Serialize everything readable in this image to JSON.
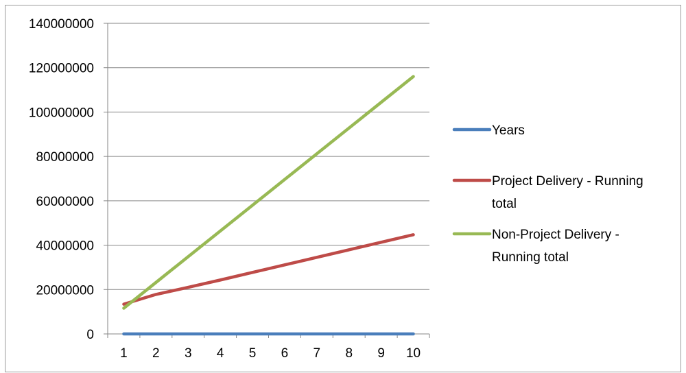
{
  "chart_data": {
    "type": "line",
    "title": "",
    "xlabel": "",
    "ylabel": "",
    "categories": [
      "1",
      "2",
      "3",
      "4",
      "5",
      "6",
      "7",
      "8",
      "9",
      "10"
    ],
    "ylim": [
      0,
      140000000
    ],
    "y_ticks": [
      "0",
      "20000000",
      "40000000",
      "60000000",
      "80000000",
      "100000000",
      "120000000",
      "140000000"
    ],
    "grid": "horizontal",
    "legend_position": "right",
    "series": [
      {
        "name": "Years",
        "color": "#4a7ebb",
        "values": [
          1,
          2,
          3,
          4,
          5,
          6,
          7,
          8,
          9,
          10
        ]
      },
      {
        "name": "Project Delivery - Running total",
        "legend_lines": [
          "Project Delivery - Running",
          "total"
        ],
        "color": "#be4b48",
        "values": [
          13400000,
          17800000,
          21000000,
          24300000,
          27700000,
          31100000,
          34500000,
          37900000,
          41300000,
          44700000
        ]
      },
      {
        "name": "Non-Project Delivery - Running total",
        "legend_lines": [
          "Non-Project Delivery -",
          "Running total"
        ],
        "color": "#98b954",
        "values": [
          11600000,
          23200000,
          34800000,
          46400000,
          58000000,
          69600000,
          81200000,
          92800000,
          104400000,
          116000000
        ]
      }
    ]
  }
}
